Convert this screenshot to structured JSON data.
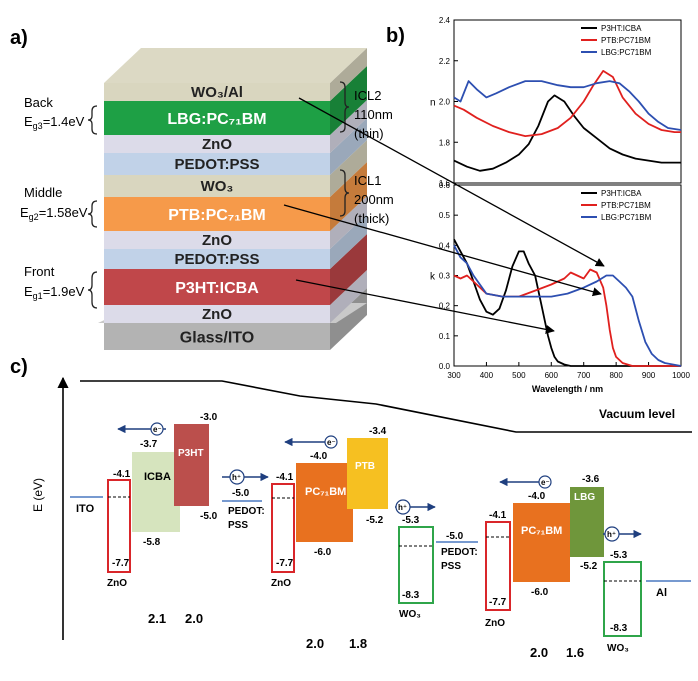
{
  "panel_labels": {
    "a": "a)",
    "b": "b)",
    "c": "c)"
  },
  "stack": {
    "layers": [
      {
        "label": "WO₃/Al",
        "fill": "#d9d6bf"
      },
      {
        "label": "LBG:PC₇₁BM",
        "fill": "#1ea045"
      },
      {
        "label": "ZnO",
        "fill": "#dcdbe9"
      },
      {
        "label": "PEDOT:PSS",
        "fill": "#c1d2e8"
      },
      {
        "label": "WO₃",
        "fill": "#d9d6bf"
      },
      {
        "label": "PTB:PC₇₁BM",
        "fill": "#f69a4a"
      },
      {
        "label": "ZnO",
        "fill": "#dcdbe9"
      },
      {
        "label": "PEDOT:PSS",
        "fill": "#c1d2e8"
      },
      {
        "label": "P3HT:ICBA",
        "fill": "#c0474a"
      },
      {
        "label": "ZnO",
        "fill": "#dcdbe9"
      },
      {
        "label": "Glass/ITO",
        "fill": "#b3b3b3"
      }
    ],
    "left_labels": [
      {
        "name": "Back",
        "gap": "E",
        "sub": "g3",
        "value": "=1.4eV"
      },
      {
        "name": "Middle",
        "gap": "E",
        "sub": "g2",
        "value": "=1.58eV"
      },
      {
        "name": "Front",
        "gap": "E",
        "sub": "g1",
        "value": "=1.9eV"
      }
    ],
    "right_labels": [
      {
        "lines": [
          "ICL2",
          "110nm",
          "(thin)"
        ]
      },
      {
        "lines": [
          "ICL1",
          "200nm",
          "(thick)"
        ]
      }
    ]
  },
  "chart_data": [
    {
      "type": "line",
      "title": "",
      "xlabel": "",
      "ylabel": "n",
      "xlim": [
        300,
        1000
      ],
      "ylim": [
        1.6,
        2.4
      ],
      "yticks": [
        "1.6",
        "1.8",
        "2.0",
        "2.2",
        "2.4"
      ],
      "legend": "top-right",
      "series": [
        {
          "name": "P3HT:ICBA",
          "color": "#000000",
          "x": [
            300,
            340,
            380,
            420,
            460,
            500,
            530,
            560,
            590,
            610,
            640,
            670,
            700,
            740,
            780,
            820,
            860,
            900,
            940,
            980,
            1000
          ],
          "y": [
            1.71,
            1.68,
            1.66,
            1.67,
            1.7,
            1.74,
            1.79,
            1.88,
            2.0,
            2.03,
            2.0,
            1.93,
            1.87,
            1.82,
            1.77,
            1.74,
            1.72,
            1.71,
            1.7,
            1.7,
            1.7
          ]
        },
        {
          "name": "PTB:PC71BM",
          "color": "#e0201e",
          "x": [
            300,
            330,
            370,
            420,
            470,
            520,
            570,
            620,
            660,
            700,
            730,
            760,
            790,
            820,
            860,
            900,
            940,
            980,
            1000
          ],
          "y": [
            1.98,
            1.96,
            1.92,
            1.88,
            1.85,
            1.83,
            1.84,
            1.87,
            1.92,
            2.0,
            2.08,
            2.15,
            2.12,
            2.02,
            1.94,
            1.89,
            1.86,
            1.85,
            1.85
          ]
        },
        {
          "name": "LBG:PC71BM",
          "color": "#2d4fb1",
          "x": [
            300,
            320,
            345,
            370,
            400,
            430,
            470,
            520,
            570,
            620,
            660,
            700,
            740,
            780,
            810,
            840,
            870,
            900,
            930,
            960,
            1000
          ],
          "y": [
            2.02,
            2.0,
            2.1,
            2.06,
            2.02,
            2.04,
            2.07,
            2.1,
            2.1,
            2.08,
            2.07,
            2.07,
            2.09,
            2.1,
            2.09,
            2.05,
            2.0,
            1.94,
            1.9,
            1.87,
            1.86
          ]
        }
      ]
    },
    {
      "type": "line",
      "title": "",
      "xlabel": "Wavelength / nm",
      "ylabel": "k",
      "xlim": [
        300,
        1000
      ],
      "ylim": [
        0.0,
        0.6
      ],
      "xticks": [
        "300",
        "400",
        "500",
        "600",
        "700",
        "800",
        "900",
        "1000"
      ],
      "yticks": [
        "0.0",
        "0.1",
        "0.2",
        "0.3",
        "0.4",
        "0.5",
        "0.6"
      ],
      "legend": "top-right",
      "series": [
        {
          "name": "P3HT:ICBA",
          "color": "#000000",
          "x": [
            300,
            320,
            340,
            360,
            380,
            400,
            420,
            440,
            460,
            480,
            500,
            515,
            530,
            550,
            570,
            590,
            600,
            610,
            620,
            640,
            660,
            700,
            800,
            900,
            1000
          ],
          "y": [
            0.42,
            0.38,
            0.34,
            0.28,
            0.22,
            0.18,
            0.17,
            0.19,
            0.25,
            0.33,
            0.38,
            0.38,
            0.34,
            0.3,
            0.2,
            0.1,
            0.06,
            0.03,
            0.015,
            0.005,
            0.0,
            0.0,
            0.0,
            0.0,
            0.0
          ]
        },
        {
          "name": "PTB:PC71BM",
          "color": "#e0201e",
          "x": [
            300,
            320,
            340,
            360,
            400,
            450,
            500,
            550,
            600,
            640,
            660,
            680,
            700,
            720,
            740,
            760,
            770,
            780,
            790,
            800,
            820,
            850,
            900,
            1000
          ],
          "y": [
            0.3,
            0.29,
            0.3,
            0.28,
            0.24,
            0.23,
            0.23,
            0.25,
            0.27,
            0.29,
            0.31,
            0.3,
            0.29,
            0.32,
            0.31,
            0.26,
            0.2,
            0.12,
            0.06,
            0.03,
            0.01,
            0.0,
            0.0,
            0.0
          ]
        },
        {
          "name": "LBG:PC71BM",
          "color": "#2d4fb1",
          "x": [
            300,
            320,
            340,
            360,
            380,
            400,
            450,
            500,
            550,
            600,
            650,
            700,
            740,
            770,
            790,
            810,
            830,
            850,
            870,
            890,
            910,
            930,
            950,
            1000
          ],
          "y": [
            0.4,
            0.36,
            0.34,
            0.3,
            0.27,
            0.24,
            0.23,
            0.23,
            0.23,
            0.23,
            0.24,
            0.26,
            0.28,
            0.3,
            0.3,
            0.28,
            0.26,
            0.23,
            0.15,
            0.08,
            0.04,
            0.02,
            0.01,
            0.0
          ]
        }
      ]
    }
  ],
  "energy": {
    "axis_label": "E (eV)",
    "vacuum_level": "Vacuum level",
    "electrodes": {
      "ito": "ITO",
      "al": "Al"
    },
    "electron": "e⁻",
    "hole": "h⁺",
    "levels": {
      "zno1_top": "-4.1",
      "zno1_bot": "-7.7",
      "icba_top": "-3.7",
      "icba_bot": "-5.8",
      "p3ht_top": "-3.0",
      "p3ht_bot": "-5.0",
      "pedot1": "-5.0",
      "zno2_top": "-4.1",
      "zno2_bot": "-7.7",
      "pc1_top": "-4.0",
      "pc1_bot": "-6.0",
      "ptb_top": "-3.4",
      "ptb_bot": "-5.2",
      "wo1_top": "-5.3",
      "wo1_bot": "-8.3",
      "pedot2": "-5.0",
      "zno3_top": "-4.1",
      "zno3_bot": "-7.7",
      "pc2_top": "-4.0",
      "pc2_bot": "-6.0",
      "lbg_top": "-3.6",
      "lbg_bot": "-5.2",
      "wo2_top": "-5.3",
      "wo2_bot": "-8.3"
    },
    "names": {
      "zno": "ZnO",
      "icba": "ICBA",
      "p3ht": "P3HT",
      "pedot1": "PEDOT:",
      "pss": "PSS",
      "pc": "PC₇₁BM",
      "ptb": "PTB",
      "wo3": "WO₃",
      "lbg": "LBG"
    },
    "bandgaps": [
      {
        "a": "2.1",
        "b": "2.0"
      },
      {
        "a": "2.0",
        "b": "1.8"
      },
      {
        "a": "2.0",
        "b": "1.6"
      }
    ]
  }
}
